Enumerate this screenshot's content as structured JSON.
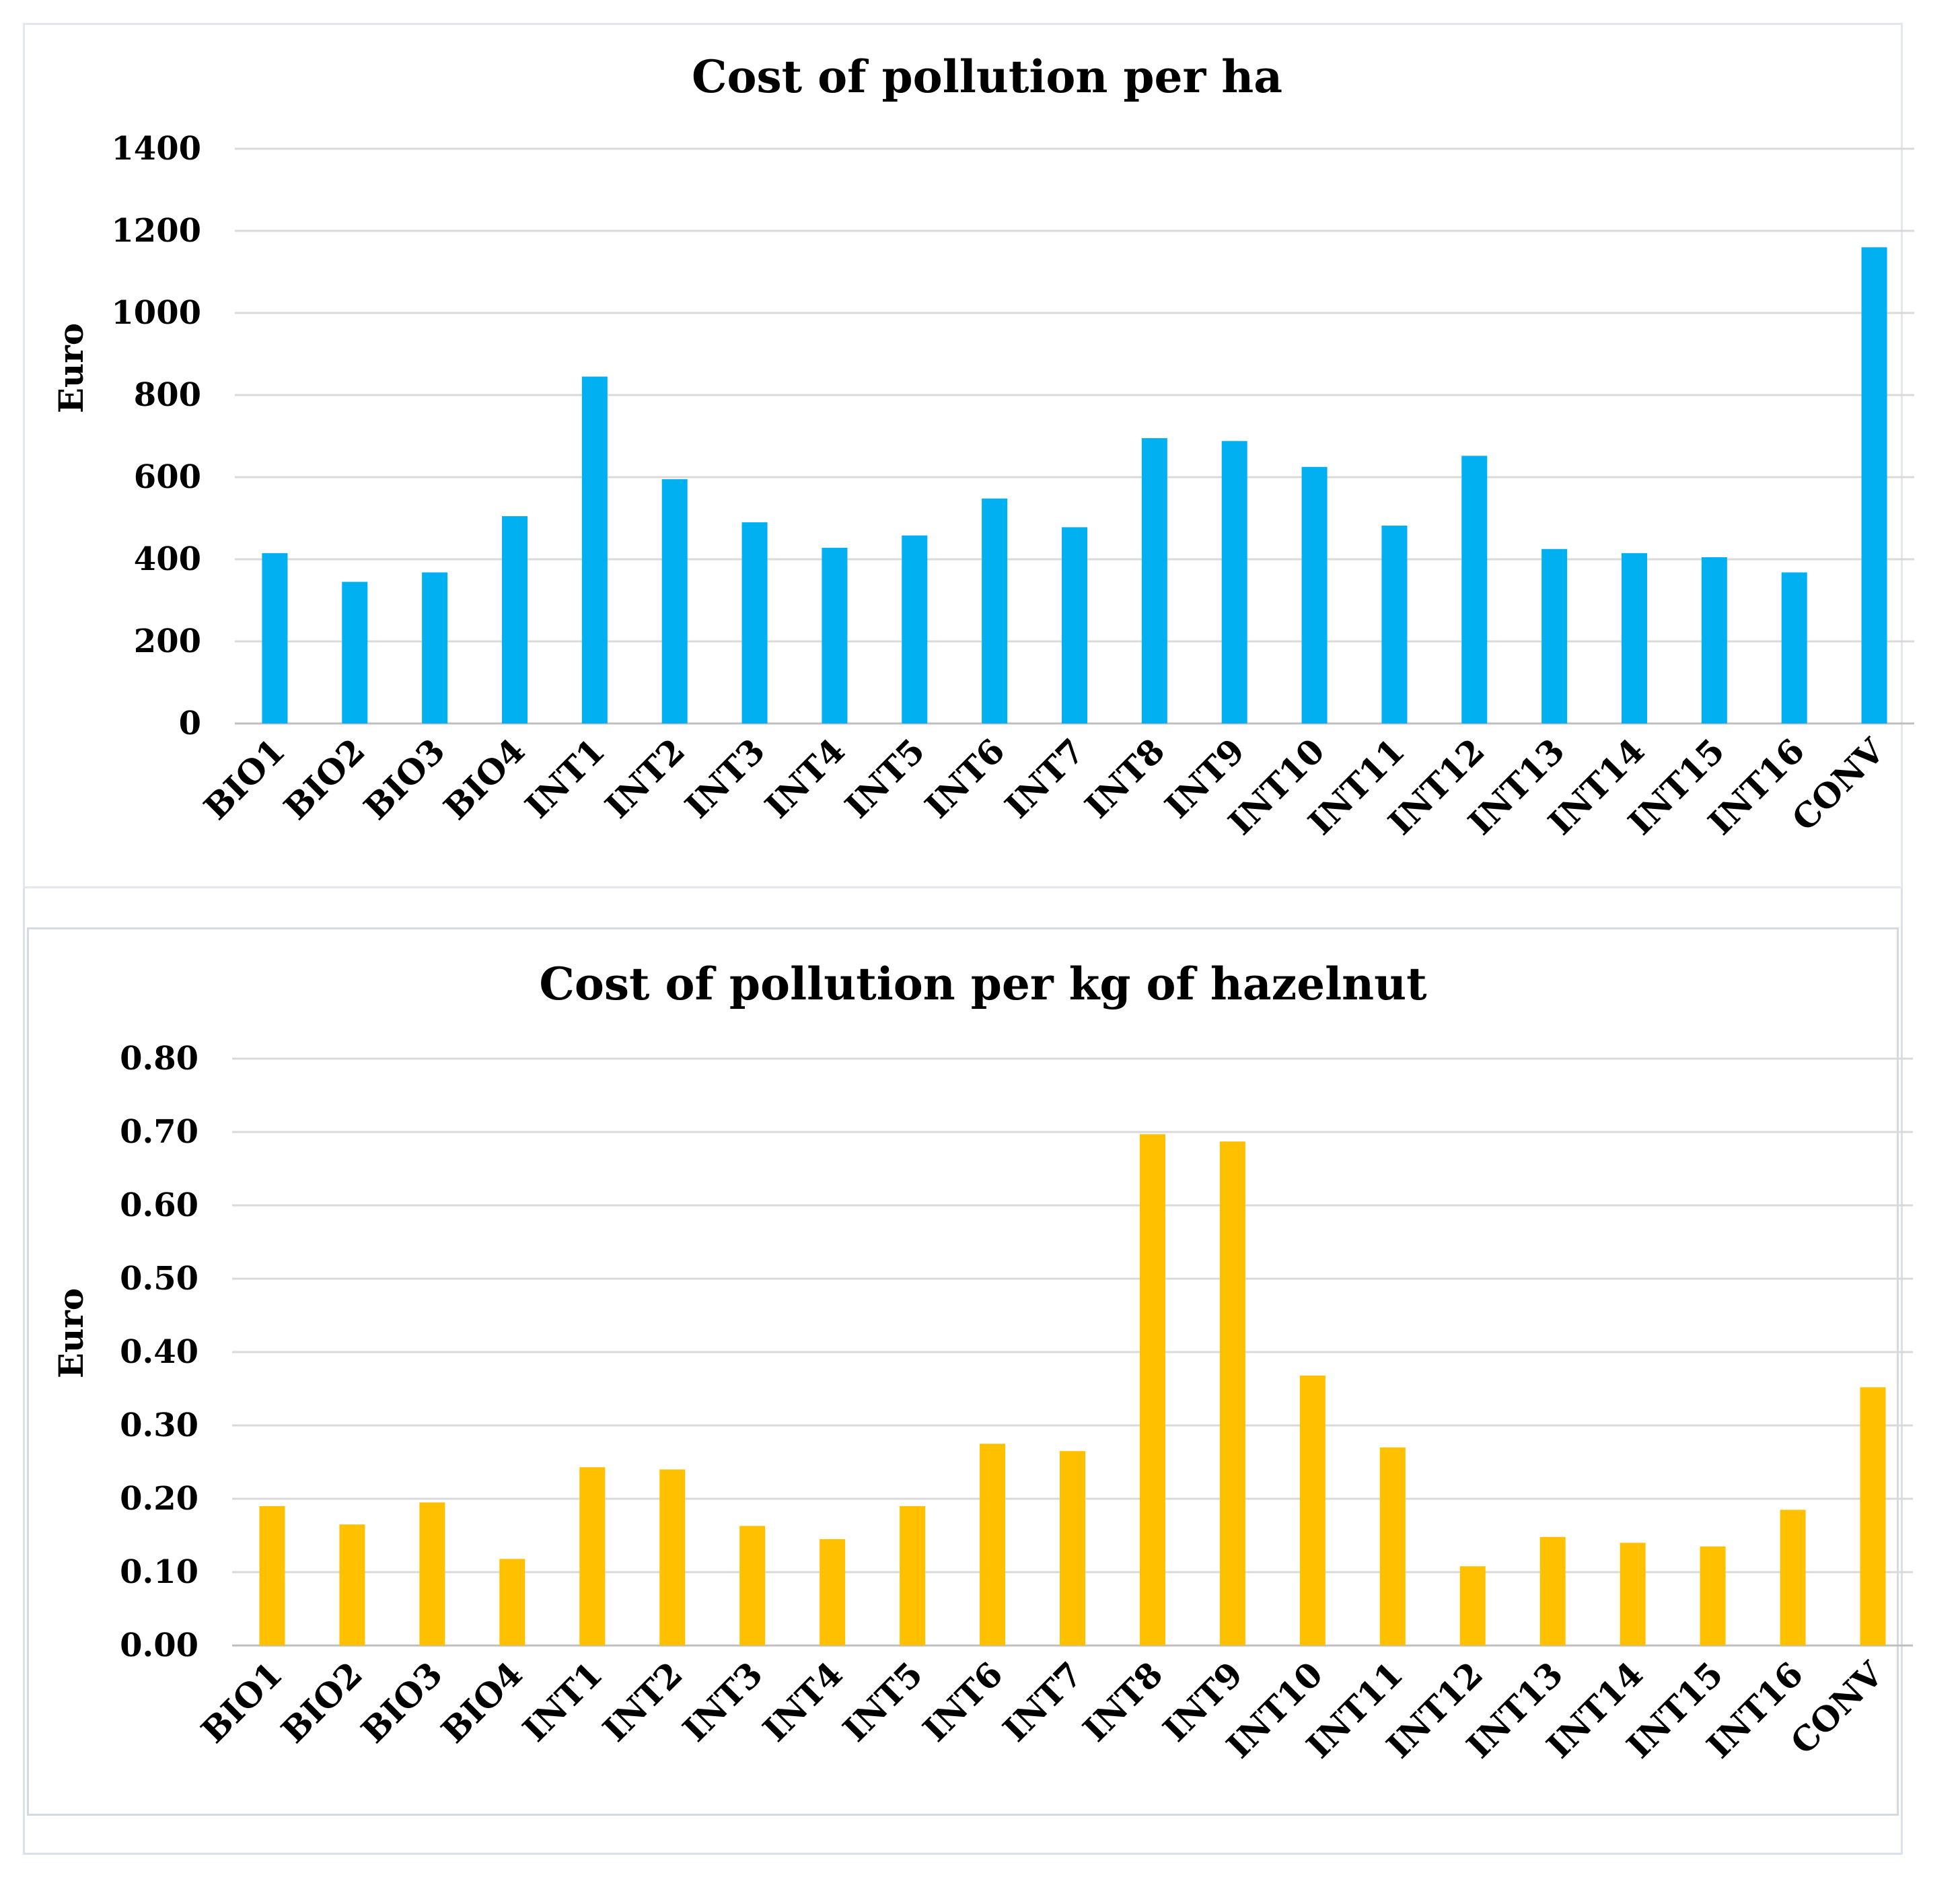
{
  "chart_data": [
    {
      "type": "bar",
      "title": "Cost of pollution  per ha",
      "xlabel": "",
      "ylabel": "Euro",
      "ylim": [
        0,
        1400
      ],
      "yticks": [
        "0",
        "200",
        "400",
        "600",
        "800",
        "1000",
        "1200",
        "1400"
      ],
      "ytick_values": [
        0,
        200,
        400,
        600,
        800,
        1000,
        1200,
        1400
      ],
      "color": "#00B0F0",
      "grid": true,
      "legend": "none",
      "categories": [
        "BIO1",
        "BIO2",
        "BIO3",
        "BIO4",
        "INT1",
        "INT2",
        "INT3",
        "INT4",
        "INT5",
        "INT6",
        "INT7",
        "INT8",
        "INT9",
        "INT10",
        "INT11",
        "INT12",
        "INT13",
        "INT14",
        "INT15",
        "INT16",
        "CONV"
      ],
      "values": [
        415,
        345,
        368,
        505,
        845,
        595,
        490,
        428,
        458,
        548,
        478,
        695,
        688,
        625,
        482,
        652,
        425,
        415,
        405,
        368,
        1160
      ]
    },
    {
      "type": "bar",
      "title": "Cost of pollution  per kg of hazelnut",
      "xlabel": "",
      "ylabel": "Euro",
      "ylim": [
        0,
        0.8
      ],
      "yticks": [
        "0.00",
        "0.10",
        "0.20",
        "0.30",
        "0.40",
        "0.50",
        "0.60",
        "0.70",
        "0.80"
      ],
      "ytick_values": [
        0,
        0.1,
        0.2,
        0.3,
        0.4,
        0.5,
        0.6,
        0.7,
        0.8
      ],
      "color": "#FFC000",
      "grid": true,
      "legend": "none",
      "categories": [
        "BIO1",
        "BIO2",
        "BIO3",
        "BIO4",
        "INT1",
        "INT2",
        "INT3",
        "INT4",
        "INT5",
        "INT6",
        "INT7",
        "INT8",
        "INT9",
        "INT10",
        "INT11",
        "INT12",
        "INT13",
        "INT14",
        "INT15",
        "INT16",
        "CONV"
      ],
      "values": [
        0.19,
        0.165,
        0.195,
        0.118,
        0.243,
        0.24,
        0.163,
        0.145,
        0.19,
        0.275,
        0.265,
        0.697,
        0.687,
        0.368,
        0.27,
        0.108,
        0.148,
        0.14,
        0.135,
        0.185,
        0.352
      ]
    }
  ]
}
